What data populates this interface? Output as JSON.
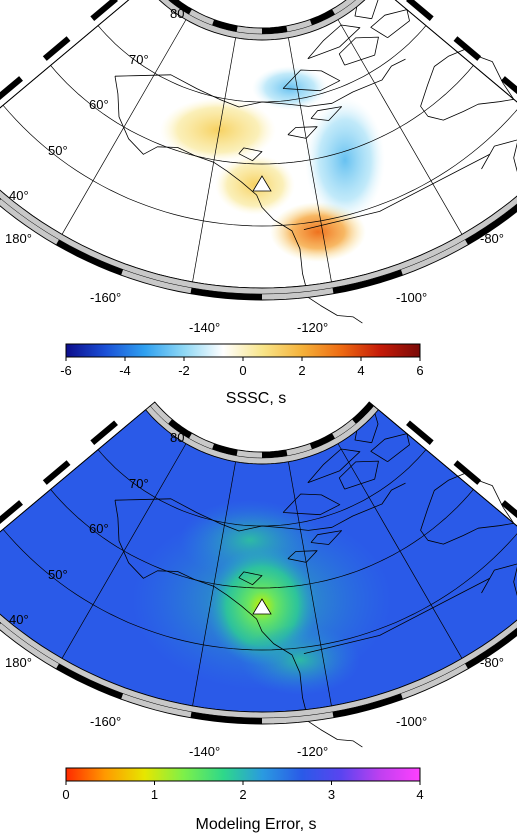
{
  "panels": [
    {
      "id": "sssc",
      "lat_labels": [
        "80°",
        "70°",
        "60°",
        "50°",
        "40°"
      ],
      "lon_labels_left": [
        "180°"
      ],
      "lon_labels_bottom": [
        "-160°",
        "-140°",
        "-120°",
        "-100°"
      ],
      "lon_labels_right": [
        "-80°"
      ],
      "colorbar": {
        "title": "SSSC, s",
        "ticks": [
          "-6",
          "-4",
          "-2",
          "0",
          "2",
          "4",
          "6"
        ],
        "range": [
          -6,
          6
        ],
        "colors": [
          "#0d0d8c",
          "#1a4fd6",
          "#2fa0f0",
          "#8fd8f5",
          "#ffffff",
          "#f8e58a",
          "#f5b23a",
          "#ee6a12",
          "#c41a08",
          "#7a0a08"
        ]
      },
      "station_marker": "triangle-icon"
    },
    {
      "id": "modeling-error",
      "lat_labels": [
        "80°",
        "70°",
        "60°",
        "50°",
        "40°"
      ],
      "lon_labels_left": [
        "180°"
      ],
      "lon_labels_bottom": [
        "-160°",
        "-140°",
        "-120°",
        "-100°"
      ],
      "lon_labels_right": [
        "-80°"
      ],
      "colorbar": {
        "title": "Modeling Error, s",
        "ticks": [
          "0",
          "1",
          "2",
          "3",
          "4"
        ],
        "range": [
          0,
          4
        ],
        "colors": [
          "#ff2a00",
          "#ff9a00",
          "#e6e600",
          "#7cf04a",
          "#2ed88a",
          "#2a9ae0",
          "#2a5ae8",
          "#5a44f0",
          "#c040f0",
          "#ff40ff"
        ]
      },
      "station_marker": "triangle-icon"
    }
  ]
}
